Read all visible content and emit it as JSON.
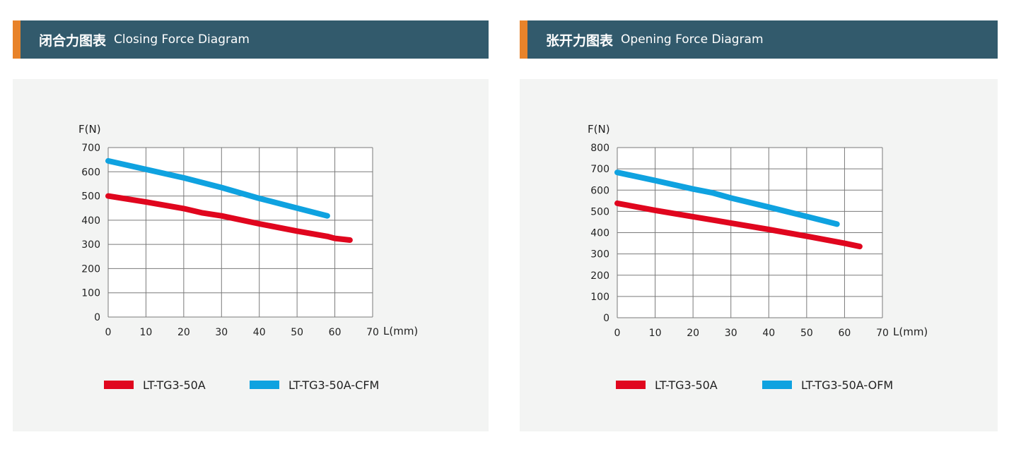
{
  "colors": {
    "header_bg": "#325a6c",
    "accent": "#e8832a",
    "card_bg": "#f3f4f3",
    "red": "#e0061e",
    "blue": "#0fa2e0",
    "grid": "#7a7a7a"
  },
  "closing": {
    "title_cn": "闭合力图表",
    "title_en": "Closing Force Diagram",
    "chart_data": {
      "type": "line",
      "ylabel": "F(N)",
      "xlabel": "L(mm)",
      "xlim": [
        0,
        70
      ],
      "ylim": [
        0,
        700
      ],
      "x_ticks": [
        0,
        10,
        20,
        30,
        40,
        50,
        60,
        70
      ],
      "y_ticks": [
        0,
        100,
        200,
        300,
        400,
        500,
        600,
        700
      ],
      "grid": true,
      "legend_position": "bottom",
      "series": [
        {
          "name": "LT-TG3-50A",
          "color": "#e0061e",
          "x": [
            0,
            10,
            20,
            25,
            30,
            40,
            50,
            58,
            60,
            64
          ],
          "y": [
            500,
            475,
            448,
            430,
            418,
            385,
            355,
            333,
            325,
            318
          ]
        },
        {
          "name": "LT-TG3-50A-CFM",
          "color": "#0fa2e0",
          "x": [
            0,
            10,
            20,
            30,
            40,
            50,
            58
          ],
          "y": [
            645,
            610,
            575,
            535,
            490,
            450,
            418
          ]
        }
      ]
    }
  },
  "opening": {
    "title_cn": "张开力图表",
    "title_en": "Opening Force Diagram",
    "chart_data": {
      "type": "line",
      "ylabel": "F(N)",
      "xlabel": "L(mm)",
      "xlim": [
        0,
        70
      ],
      "ylim": [
        0,
        800
      ],
      "x_ticks": [
        0,
        10,
        20,
        30,
        40,
        50,
        60,
        70
      ],
      "y_ticks": [
        0,
        100,
        200,
        300,
        400,
        500,
        600,
        700,
        800
      ],
      "grid": true,
      "legend_position": "bottom",
      "series": [
        {
          "name": "LT-TG3-50A",
          "color": "#e0061e",
          "x": [
            0,
            10,
            20,
            30,
            40,
            50,
            60,
            64
          ],
          "y": [
            538,
            505,
            475,
            445,
            415,
            383,
            350,
            335
          ]
        },
        {
          "name": "LT-TG3-50A-OFM",
          "color": "#0fa2e0",
          "x": [
            0,
            10,
            20,
            25,
            30,
            40,
            50,
            58
          ],
          "y": [
            683,
            645,
            605,
            588,
            563,
            520,
            476,
            440
          ]
        }
      ]
    }
  }
}
